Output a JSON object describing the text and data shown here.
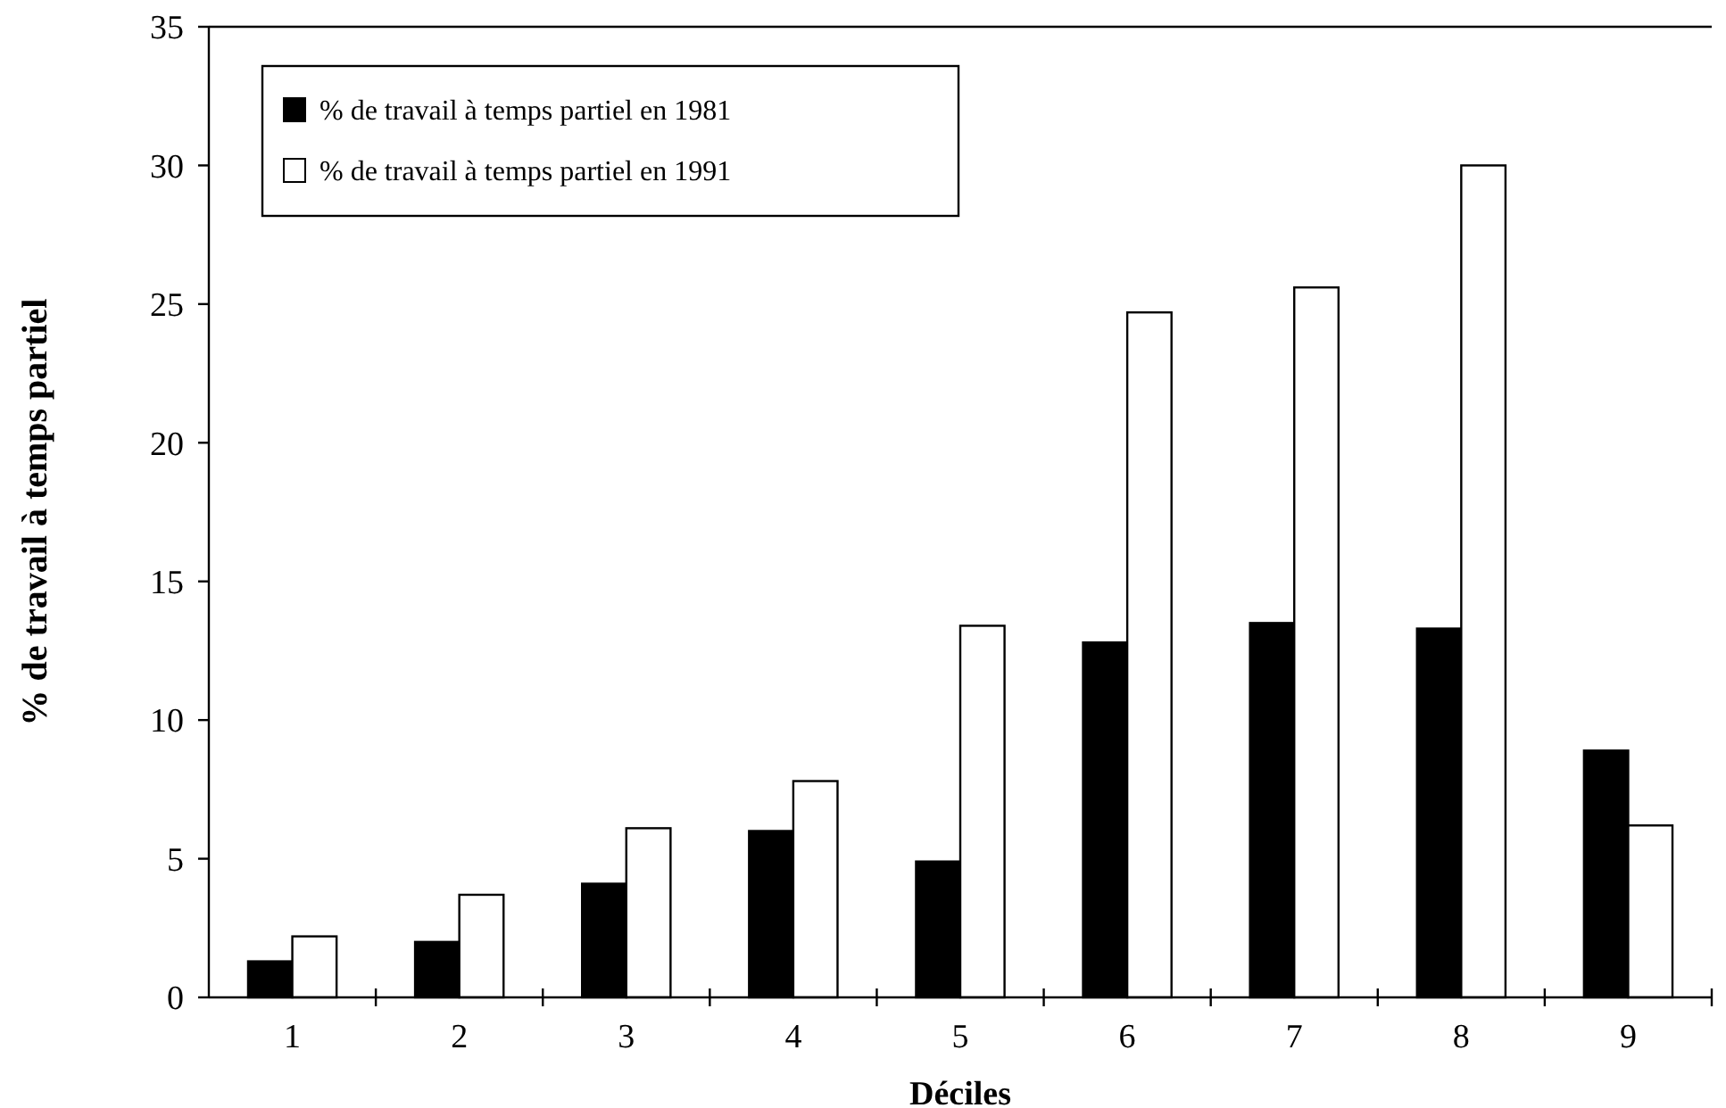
{
  "chart_data": {
    "type": "bar",
    "xlabel": "Déciles",
    "ylabel": "% de travail à temps partiel",
    "categories": [
      "1",
      "2",
      "3",
      "4",
      "5",
      "6",
      "7",
      "8",
      "9"
    ],
    "series": [
      {
        "name": "% de travail à temps partiel en 1981",
        "color": "#000000",
        "values": [
          1.3,
          2.0,
          4.1,
          6.0,
          4.9,
          12.8,
          13.5,
          13.3,
          8.9
        ]
      },
      {
        "name": "% de travail à temps partiel en 1991",
        "color": "#ffffff",
        "values": [
          2.2,
          3.7,
          6.1,
          7.8,
          13.4,
          24.7,
          25.6,
          30.0,
          6.2
        ]
      }
    ],
    "ylim": [
      0,
      35
    ],
    "yticks": [
      0,
      5,
      10,
      15,
      20,
      25,
      30,
      35
    ],
    "grid": false,
    "legend": "top left"
  }
}
